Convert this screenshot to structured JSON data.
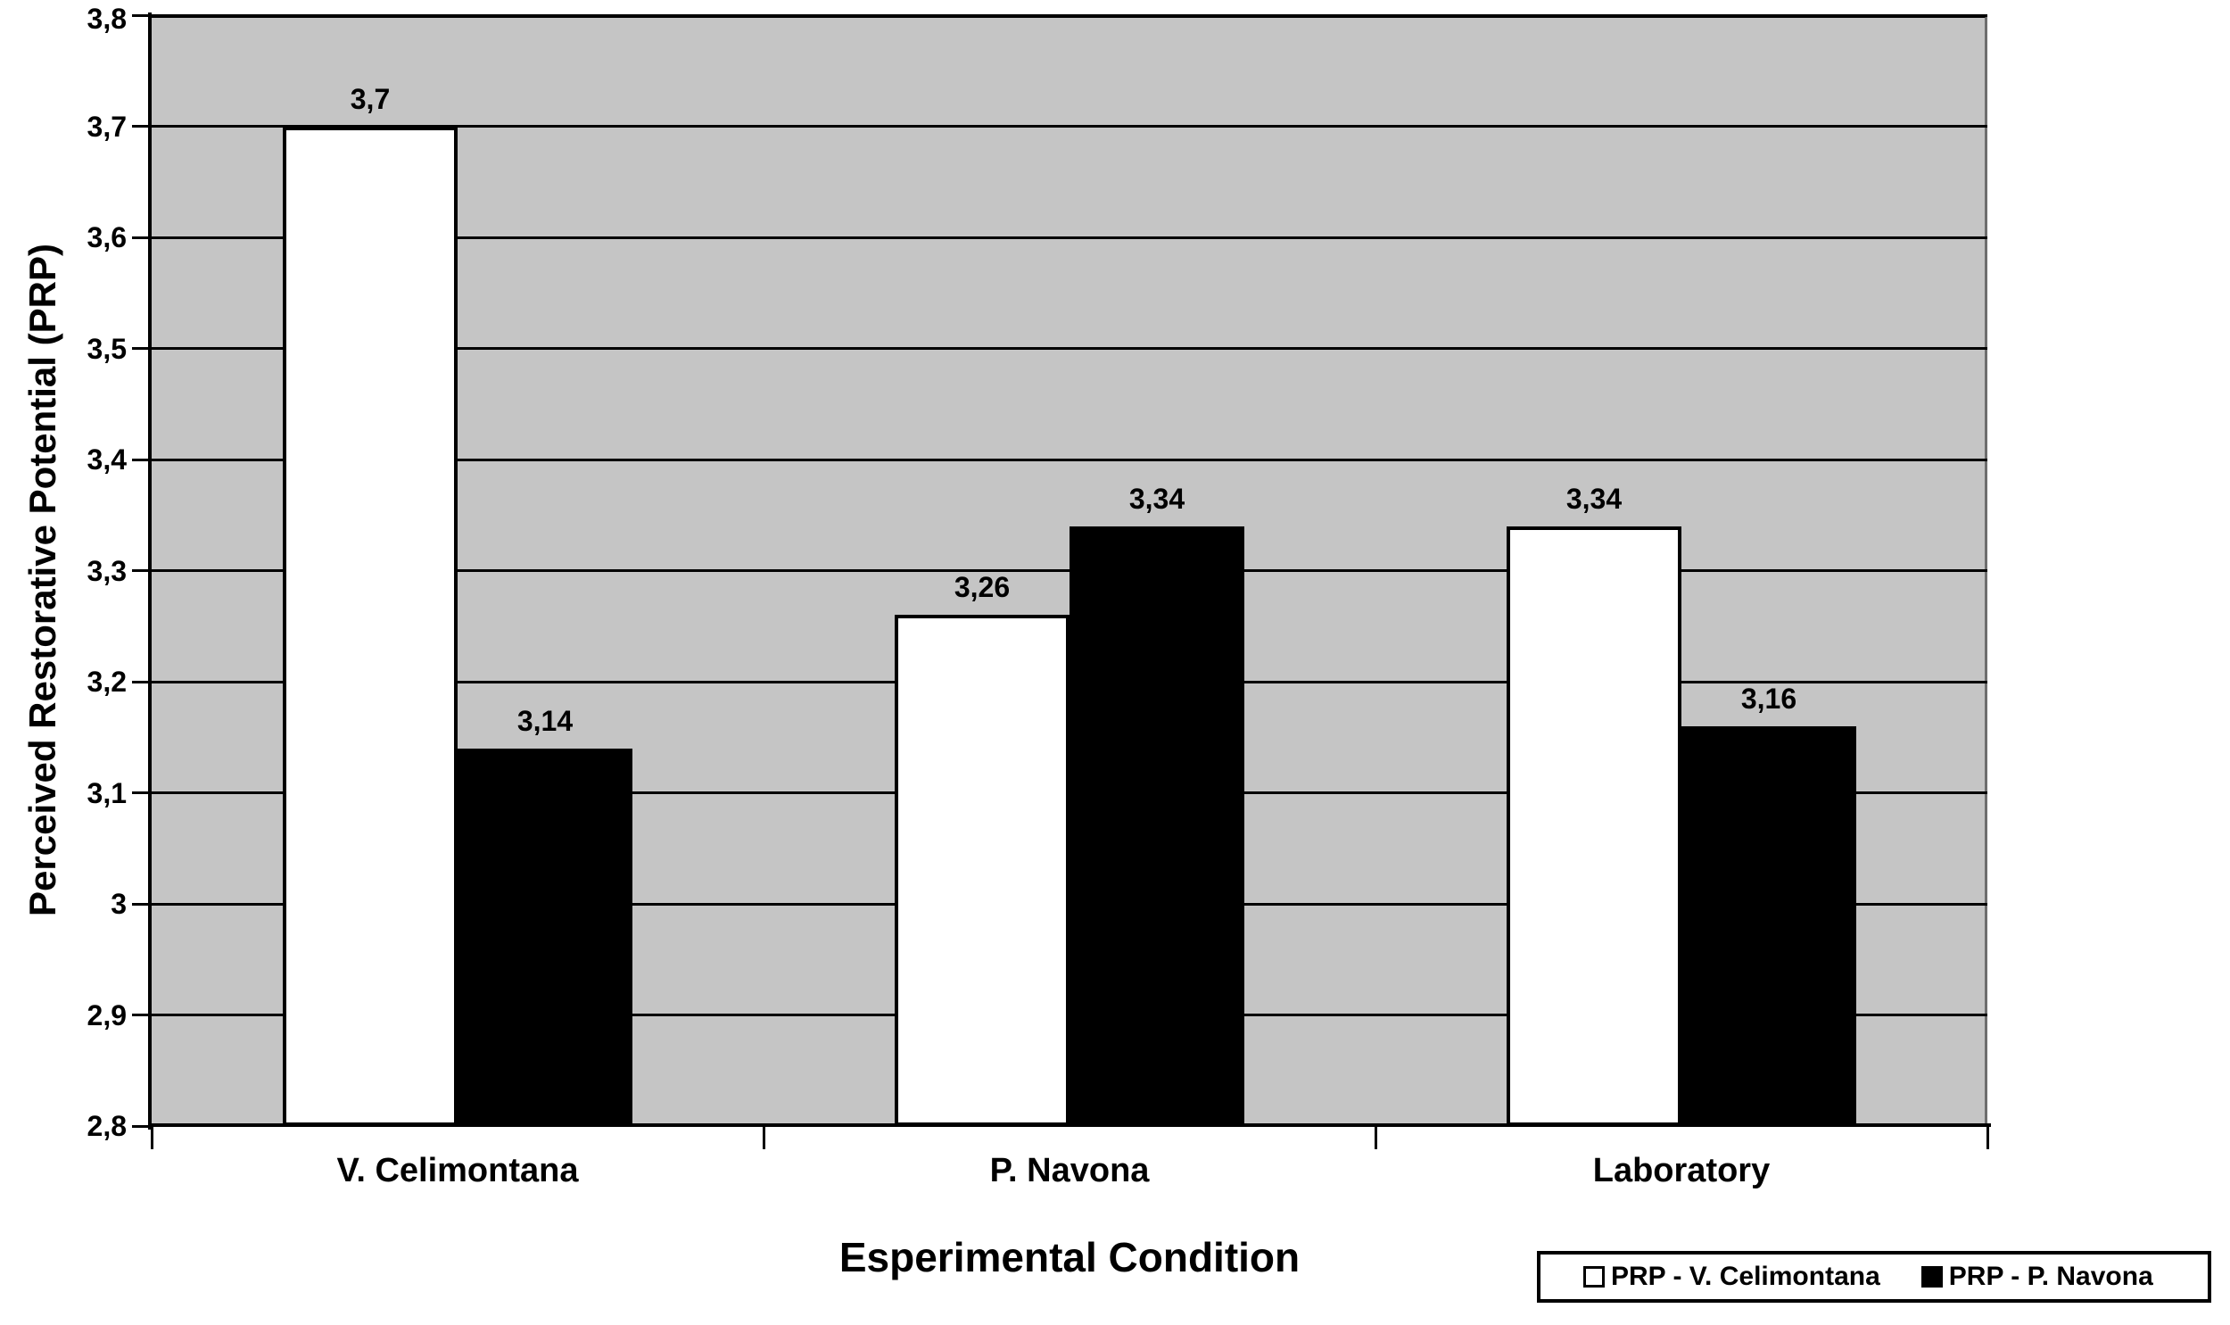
{
  "chart_data": {
    "type": "bar",
    "title": "",
    "xlabel": "Esperimental Condition",
    "ylabel": "Perceived Restorative Potential (PRP)",
    "categories": [
      "V. Celimontana",
      "P. Navona",
      "Laboratory"
    ],
    "series": [
      {
        "name": "PRP - V. Celimontana",
        "fill": "#ffffff",
        "values": [
          3.7,
          3.26,
          3.34
        ],
        "labels": [
          "3,7",
          "3,26",
          "3,34"
        ]
      },
      {
        "name": "PRP - P. Navona",
        "fill": "#000000",
        "values": [
          3.14,
          3.34,
          3.16
        ],
        "labels": [
          "3,14",
          "3,34",
          "3,16"
        ]
      }
    ],
    "ylim": [
      2.8,
      3.8
    ],
    "yticks": [
      {
        "value": 2.8,
        "label": "2,8"
      },
      {
        "value": 2.9,
        "label": "2,9"
      },
      {
        "value": 3.0,
        "label": "3"
      },
      {
        "value": 3.1,
        "label": "3,1"
      },
      {
        "value": 3.2,
        "label": "3,2"
      },
      {
        "value": 3.3,
        "label": "3,3"
      },
      {
        "value": 3.4,
        "label": "3,4"
      },
      {
        "value": 3.5,
        "label": "3,5"
      },
      {
        "value": 3.6,
        "label": "3,6"
      },
      {
        "value": 3.7,
        "label": "3,7"
      },
      {
        "value": 3.8,
        "label": "3,8"
      }
    ],
    "grid": true,
    "gridline_color": "#000000",
    "plot_bg": "#c5c5c5",
    "legend_position": "bottom-right",
    "decimal_separator": ","
  }
}
